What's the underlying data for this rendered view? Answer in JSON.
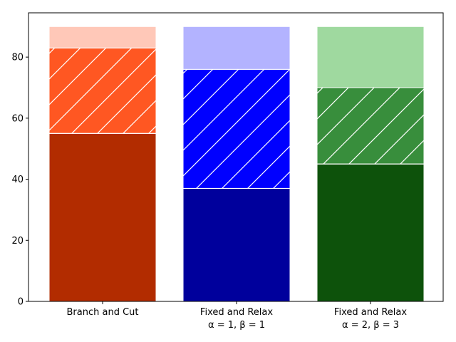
{
  "chart_data": {
    "type": "bar",
    "stacked": true,
    "categories": [
      [
        "Branch and Cut"
      ],
      [
        "Fixed and Relax",
        "α = 1, β = 1"
      ],
      [
        "Fixed and Relax",
        "α = 2, β = 3"
      ]
    ],
    "segments": [
      [
        {
          "from": 0,
          "to": 55,
          "color": "#b22c00",
          "hatch": false
        },
        {
          "from": 55,
          "to": 83,
          "color": "#ff5722",
          "hatch": true
        },
        {
          "from": 83,
          "to": 90,
          "color": "#ffc8b8",
          "hatch": false
        }
      ],
      [
        {
          "from": 0,
          "to": 37,
          "color": "#00009c",
          "hatch": false
        },
        {
          "from": 37,
          "to": 76,
          "color": "#0000ff",
          "hatch": true
        },
        {
          "from": 76,
          "to": 90,
          "color": "#b3b3ff",
          "hatch": false
        }
      ],
      [
        {
          "from": 0,
          "to": 45,
          "color": "#0d520b",
          "hatch": false
        },
        {
          "from": 45,
          "to": 70,
          "color": "#388e3c",
          "hatch": true
        },
        {
          "from": 70,
          "to": 90,
          "color": "#9fd99f",
          "hatch": false
        }
      ]
    ],
    "ylim": [
      0,
      90
    ],
    "yticks": [
      0,
      20,
      40,
      60,
      80
    ],
    "grid": false,
    "title": "",
    "xlabel": "",
    "ylabel": ""
  }
}
